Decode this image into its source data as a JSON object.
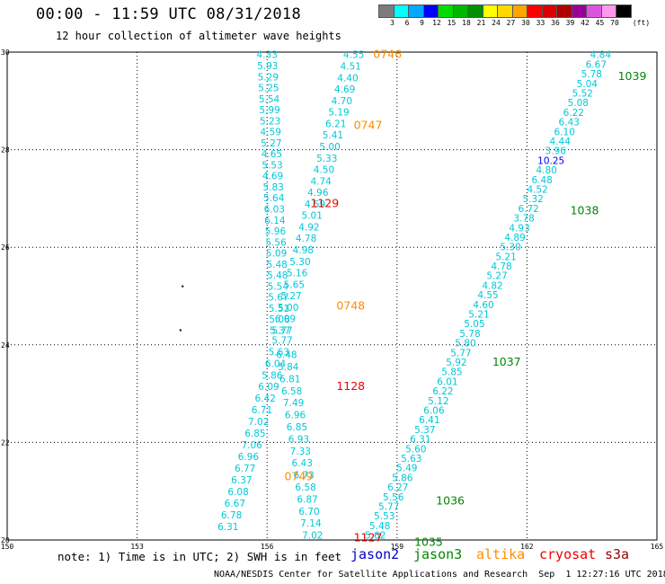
{
  "header": {
    "title": "00:00 - 11:59 UTC 08/31/2018",
    "subtitle": "12 hour collection of altimeter wave heights"
  },
  "legend": {
    "unit": "(ft)",
    "items": [
      {
        "label": "3",
        "color": "#7c7c7c"
      },
      {
        "label": "6",
        "color": "#00ffff"
      },
      {
        "label": "9",
        "color": "#00a8ff"
      },
      {
        "label": "12",
        "color": "#0000ff"
      },
      {
        "label": "15",
        "color": "#00dd00"
      },
      {
        "label": "18",
        "color": "#00b800"
      },
      {
        "label": "21",
        "color": "#009000"
      },
      {
        "label": "24",
        "color": "#ffff00"
      },
      {
        "label": "27",
        "color": "#ffd800"
      },
      {
        "label": "30",
        "color": "#ffa500"
      },
      {
        "label": "33",
        "color": "#ff0000"
      },
      {
        "label": "36",
        "color": "#dd0000"
      },
      {
        "label": "39",
        "color": "#b00000"
      },
      {
        "label": "42",
        "color": "#9a009a"
      },
      {
        "label": "45",
        "color": "#dd55dd"
      },
      {
        "label": "70",
        "color": "#ff99ee"
      },
      {
        "label": "",
        "color": "#000000"
      }
    ]
  },
  "map": {
    "lon_range": [
      150,
      165
    ],
    "lat_range": [
      20,
      30
    ],
    "lon_ticks": [
      "150",
      "153",
      "156",
      "159",
      "162",
      "165"
    ],
    "lat_ticks": [
      "20",
      "22",
      "24",
      "26",
      "28",
      "30"
    ]
  },
  "tracks": [
    {
      "name": "track-a",
      "satellite": "jason2-and-jason3",
      "color": "#00c8d8",
      "start": [
        156.0,
        29.95
      ],
      "end": [
        156.3,
        24.3
      ],
      "values": [
        "4.33",
        "5.93",
        "5.29",
        "5.25",
        "5.54",
        "5.99",
        "5.23",
        "4.59",
        "5.27",
        "4.65",
        "5.53",
        "4.69",
        "5.83",
        "5.64",
        "6.03",
        "6.14",
        "5.96",
        "5.56",
        "5.09",
        "5.48",
        "5.48",
        "5.54",
        "5.67",
        "5.51",
        "5.08",
        "5.37"
      ]
    },
    {
      "name": "track-b",
      "satellite": "jason2-and-jason3",
      "color": "#00c8d8",
      "start": [
        158.0,
        29.95
      ],
      "end": [
        156.35,
        24.3
      ],
      "values": [
        "4.55",
        "4.51",
        "4.40",
        "4.69",
        "4.70",
        "5.19",
        "6.21",
        "5.41",
        "5.00",
        "5.33",
        "4.50",
        "4.74",
        "4.96",
        "4.59",
        "5.01",
        "4.92",
        "4.78",
        "4.98",
        "5.30",
        "5.16",
        "5.65",
        "5.27",
        "5.00",
        "6.09",
        "5.77"
      ]
    },
    {
      "name": "track-c",
      "satellite": "jason2-and-jason3",
      "color": "#00c8d8",
      "start": [
        156.35,
        24.1
      ],
      "end": [
        155.1,
        20.28
      ],
      "values": [
        "5.77",
        "5.63",
        "6.04",
        "5.86",
        "6.09",
        "6.42",
        "6.71",
        "7.02",
        "6.85",
        "7.06",
        "6.96",
        "6.77",
        "6.37",
        "6.08",
        "6.67",
        "6.78",
        "6.31"
      ]
    },
    {
      "name": "track-d",
      "satellite": "jason2-and-jason3",
      "color": "#00c8d8",
      "start": [
        156.45,
        23.8
      ],
      "end": [
        157.05,
        20.1
      ],
      "values": [
        "6.48",
        "5.84",
        "6.81",
        "6.58",
        "7.49",
        "6.96",
        "6.85",
        "6.93",
        "7.33",
        "6.43",
        "6.73",
        "6.58",
        "6.87",
        "6.70",
        "7.14",
        "7.02"
      ]
    },
    {
      "name": "track-e",
      "satellite": "jason2-and-jason3",
      "color": "#00c8d8",
      "start": [
        163.7,
        29.95
      ],
      "end": [
        158.5,
        20.1
      ],
      "values": [
        "4.84",
        "6.67",
        "5.78",
        "5.04",
        "5.52",
        "5.08",
        "6.22",
        "6.43",
        "6.10",
        "4.44",
        "3.96",
        "10.25",
        "4.80",
        "6.48",
        "4.52",
        "5.32",
        "6.72",
        "3.78",
        "4.93",
        "4.89",
        "5.30",
        "5.21",
        "4.78",
        "5.27",
        "4.82",
        "4.55",
        "4.60",
        "5.21",
        "5.05",
        "5.78",
        "5.80",
        "5.77",
        "5.92",
        "5.85",
        "6.01",
        "6.22",
        "5.12",
        "6.06",
        "6.41",
        "5.37",
        "6.31",
        "5.60",
        "5.63",
        "5.49",
        "5.86",
        "6.27",
        "5.56",
        "5.77",
        "5.53",
        "5.48",
        "5.62"
      ]
    }
  ],
  "time_labels": [
    {
      "text": "0746",
      "satellite": "altika",
      "color": "#ff8c00",
      "lon": 158.45,
      "lat": 29.95
    },
    {
      "text": "0747",
      "satellite": "altika",
      "color": "#ff8c00",
      "lon": 158.0,
      "lat": 28.5
    },
    {
      "text": "0748",
      "satellite": "altika",
      "color": "#ff8c00",
      "lon": 157.6,
      "lat": 24.8
    },
    {
      "text": "0749",
      "satellite": "altika",
      "color": "#ff8c00",
      "lon": 156.4,
      "lat": 21.3
    },
    {
      "text": "1129",
      "satellite": "cryosat",
      "color": "#ee0000",
      "lon": 157.0,
      "lat": 26.9
    },
    {
      "text": "1128",
      "satellite": "cryosat",
      "color": "#ee0000",
      "lon": 157.6,
      "lat": 23.15
    },
    {
      "text": "1127",
      "satellite": "cryosat",
      "color": "#ee0000",
      "lon": 158.0,
      "lat": 20.05
    },
    {
      "text": "1039",
      "satellite": "jason3",
      "color": "#008800",
      "lon": 164.1,
      "lat": 29.5
    },
    {
      "text": "1038",
      "satellite": "jason3",
      "color": "#008800",
      "lon": 163.0,
      "lat": 26.75
    },
    {
      "text": "1037",
      "satellite": "jason3",
      "color": "#008800",
      "lon": 161.2,
      "lat": 23.65
    },
    {
      "text": "1036",
      "satellite": "jason3",
      "color": "#008800",
      "lon": 159.9,
      "lat": 20.8
    },
    {
      "text": "1035",
      "satellite": "jason3",
      "color": "#008800",
      "lon": 159.4,
      "lat": 19.95
    }
  ],
  "points": [
    {
      "lon": 154.05,
      "lat": 25.2
    },
    {
      "lon": 154.0,
      "lat": 24.3
    }
  ],
  "footer": {
    "note": "note: 1) Time is in UTC; 2) SWH is in feet",
    "satellites": [
      {
        "label": "jason2",
        "color": "#0000cc"
      },
      {
        "label": "jason3",
        "color": "#008800"
      },
      {
        "label": "altika",
        "color": "#ff8c00"
      },
      {
        "label": "cryosat",
        "color": "#ee0000"
      },
      {
        "label": "s3a",
        "color": "#990000"
      }
    ],
    "credit": "NOAA/NESDIS Center for Satellite Applications and Research",
    "generated": "Sep  1 12:27:16 UTC 2018"
  }
}
